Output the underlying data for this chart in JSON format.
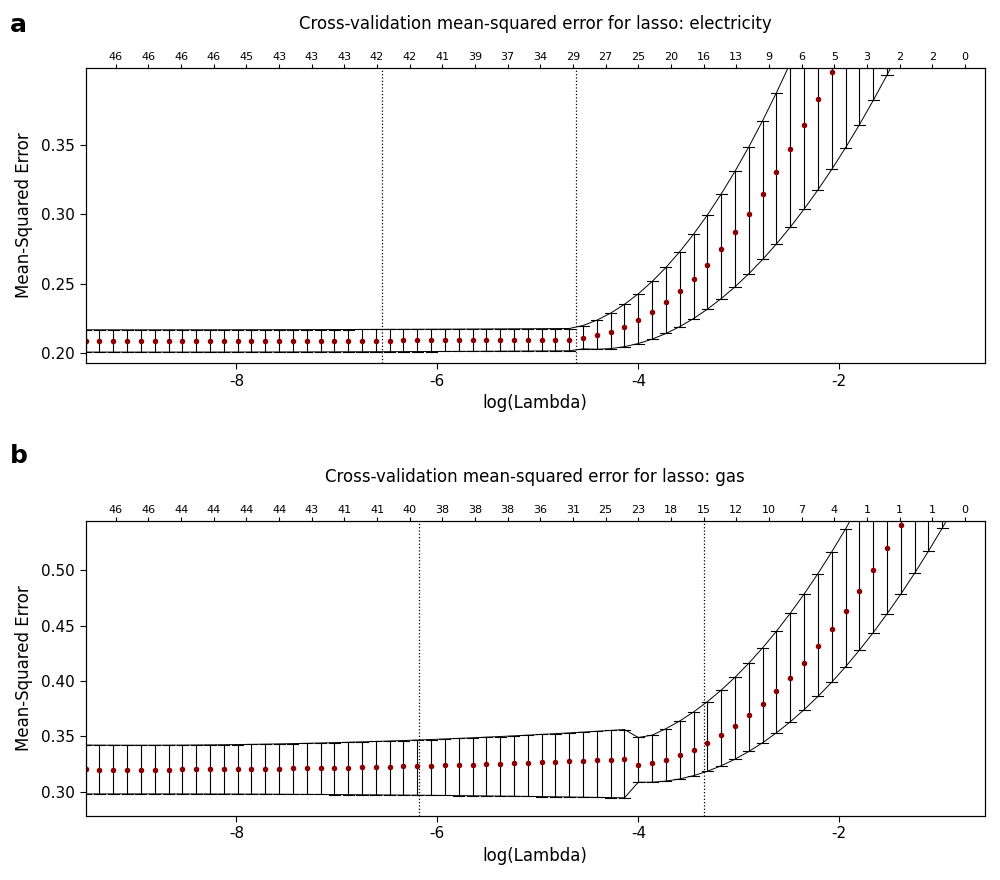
{
  "panel_a": {
    "title": "Cross-validation mean-squared error for lasso: electricity",
    "xlabel": "log(Lambda)",
    "ylabel": "Mean-Squared Error",
    "top_labels": [
      "46",
      "46",
      "46",
      "46",
      "45",
      "43",
      "43",
      "43",
      "42",
      "42",
      "41",
      "39",
      "37",
      "34",
      "29",
      "27",
      "25",
      "20",
      "16",
      "13",
      "9",
      "6",
      "5",
      "3",
      "2",
      "2",
      "0"
    ],
    "vline1": -6.55,
    "vline2": -4.62,
    "xlim": [
      -9.5,
      -0.55
    ],
    "ylim": [
      0.193,
      0.405
    ],
    "yticks": [
      0.2,
      0.25,
      0.3,
      0.35
    ],
    "xticks": [
      -8,
      -6,
      -4,
      -2
    ],
    "dot_color": "#8B0000",
    "line_color": "#000000",
    "n_points": 65
  },
  "panel_b": {
    "title": "Cross-validation mean-squared error for lasso: gas",
    "xlabel": "log(Lambda)",
    "ylabel": "Mean-Squared Error",
    "top_labels": [
      "46",
      "46",
      "44",
      "44",
      "44",
      "44",
      "43",
      "41",
      "41",
      "40",
      "38",
      "38",
      "38",
      "36",
      "31",
      "25",
      "23",
      "18",
      "15",
      "12",
      "10",
      "7",
      "4",
      "1",
      "1",
      "1",
      "0"
    ],
    "vline1": -6.18,
    "vline2": -3.35,
    "xlim": [
      -9.5,
      -0.55
    ],
    "ylim": [
      0.278,
      0.545
    ],
    "yticks": [
      0.3,
      0.35,
      0.4,
      0.45,
      0.5
    ],
    "xticks": [
      -8,
      -6,
      -4,
      -2
    ],
    "dot_color": "#8B0000",
    "line_color": "#000000",
    "n_points": 65
  }
}
